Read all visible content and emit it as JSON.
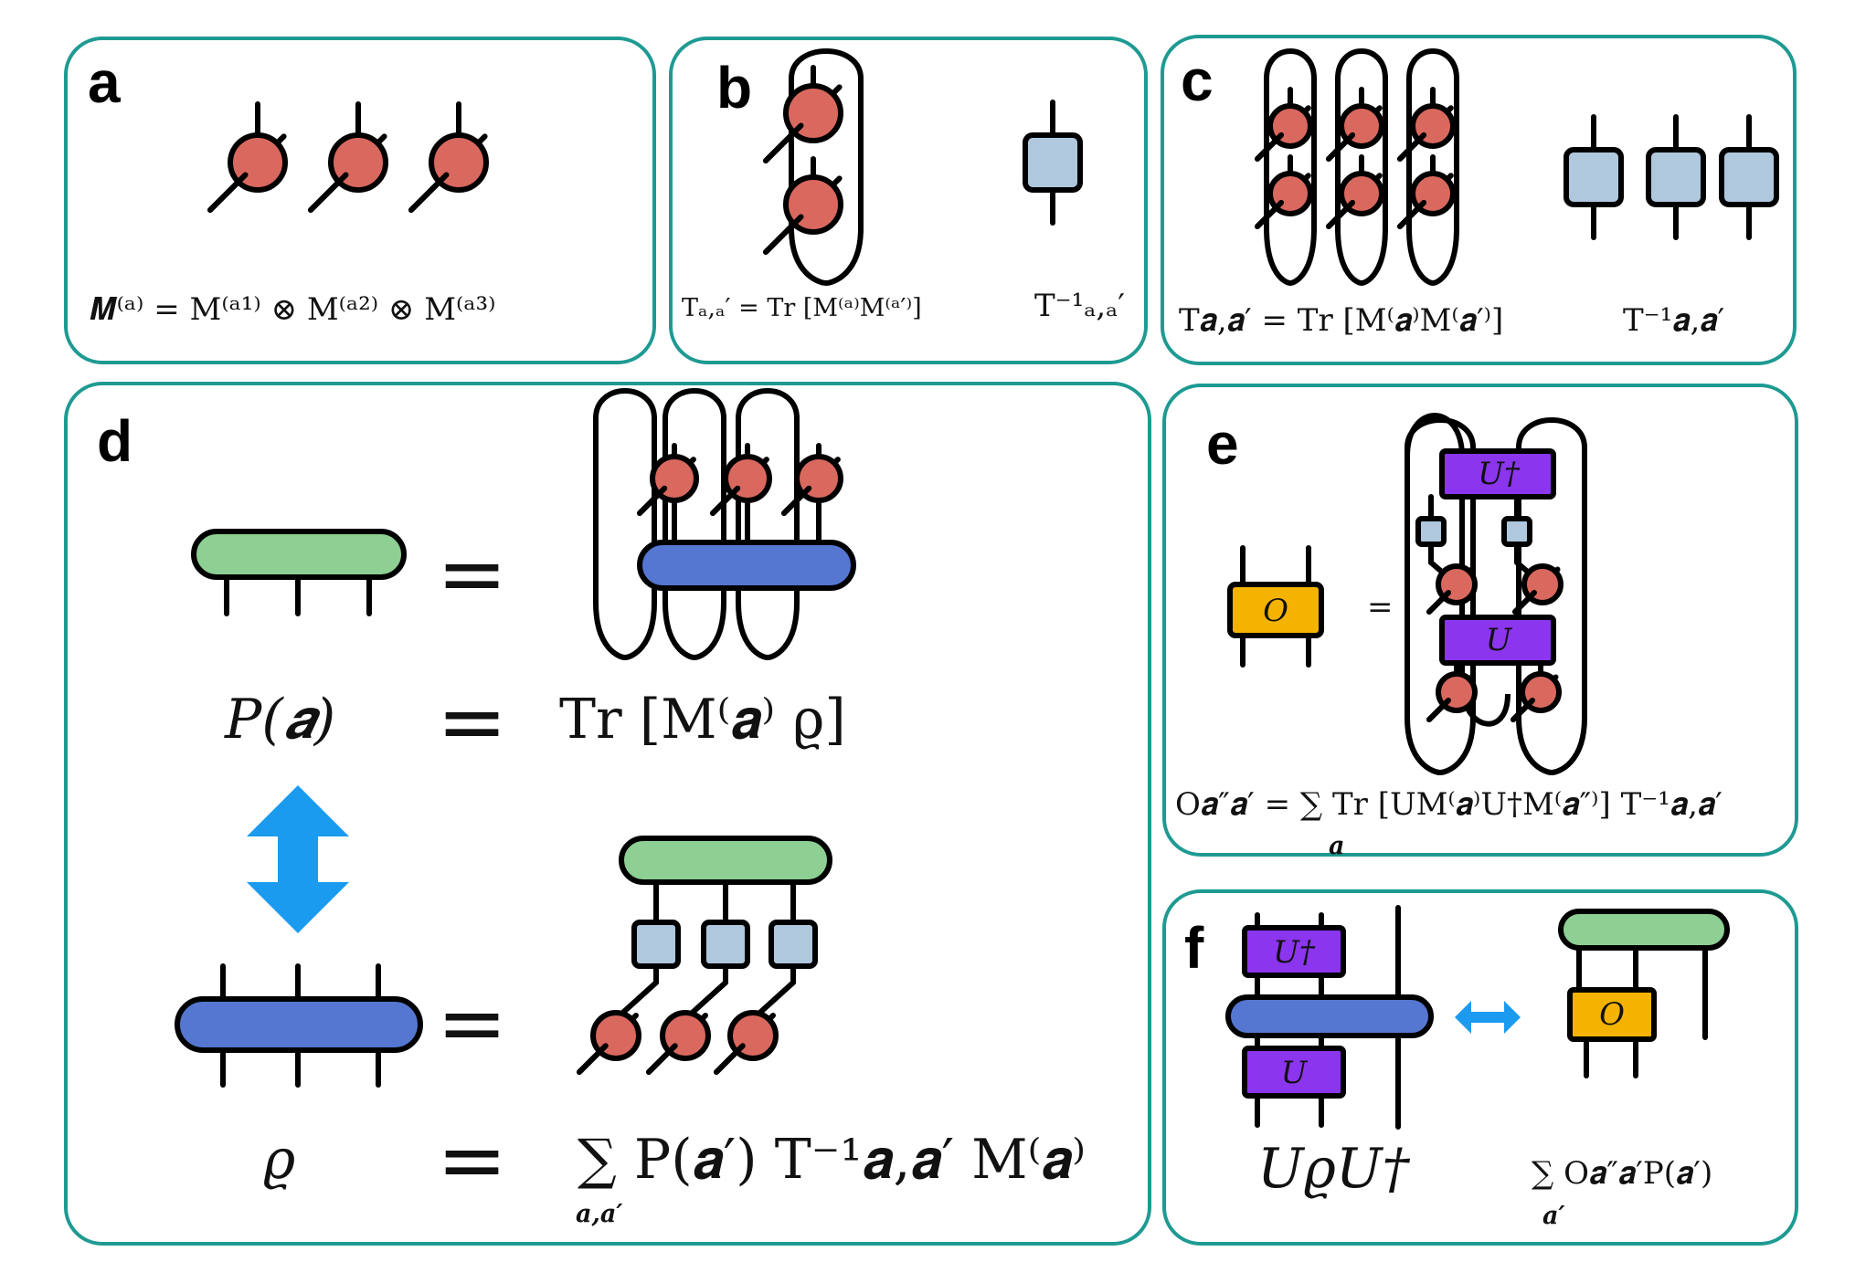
{
  "colors": {
    "panel_border": "#1E9A92",
    "measurement_circle": "#D9685F",
    "inverse_box": "#AFC8DE",
    "probability_bar": "#8ECF93",
    "state_bar": "#5577D1",
    "unitary_box": "#8B35EE",
    "observable_box": "#F3B300",
    "arrow": "#1B9BF0"
  },
  "panels": {
    "a": {
      "label": "a",
      "formula": "𝑴⁽ᵃ⁾ = M⁽ᵃ¹⁾ ⊗ M⁽ᵃ²⁾ ⊗ M⁽ᵃ³⁾"
    },
    "b": {
      "label": "b",
      "formula": "Tₐ,ₐ′ = Tr [M⁽ᵃ⁾M⁽ᵃ′⁾]",
      "inverse": "T⁻¹ₐ,ₐ′"
    },
    "c": {
      "label": "c",
      "formula": "T𝒂,𝒂′ = Tr [M⁽𝒂⁾M⁽𝒂′⁾]",
      "inverse": "T⁻¹𝒂,𝒂′"
    },
    "d": {
      "label": "d",
      "equals": "=",
      "prob_lhs": "P(𝒂)",
      "prob_rhs": "Tr [M⁽𝒂⁾ ϱ]",
      "rho_lhs": "ϱ",
      "rho_rhs": "∑ P(𝒂′) T⁻¹𝒂,𝒂′ M⁽𝒂⁾",
      "rho_sum_index": "𝒂,𝒂′"
    },
    "e": {
      "label": "e",
      "equals": "=",
      "observable": "O",
      "unitary": "U",
      "unitary_dagger": "U†",
      "formula": "O𝒂″𝒂′ = ∑ Tr [UM⁽𝒂⁾U†M⁽𝒂″⁾] T⁻¹𝒂,𝒂′",
      "sum_index": "𝒂"
    },
    "f": {
      "label": "f",
      "unitary": "U",
      "unitary_dagger": "U†",
      "observable": "O",
      "lhs": "UϱU†",
      "rhs": "∑ O𝒂″𝒂′P(𝒂′)",
      "sum_index": "𝒂′"
    }
  }
}
